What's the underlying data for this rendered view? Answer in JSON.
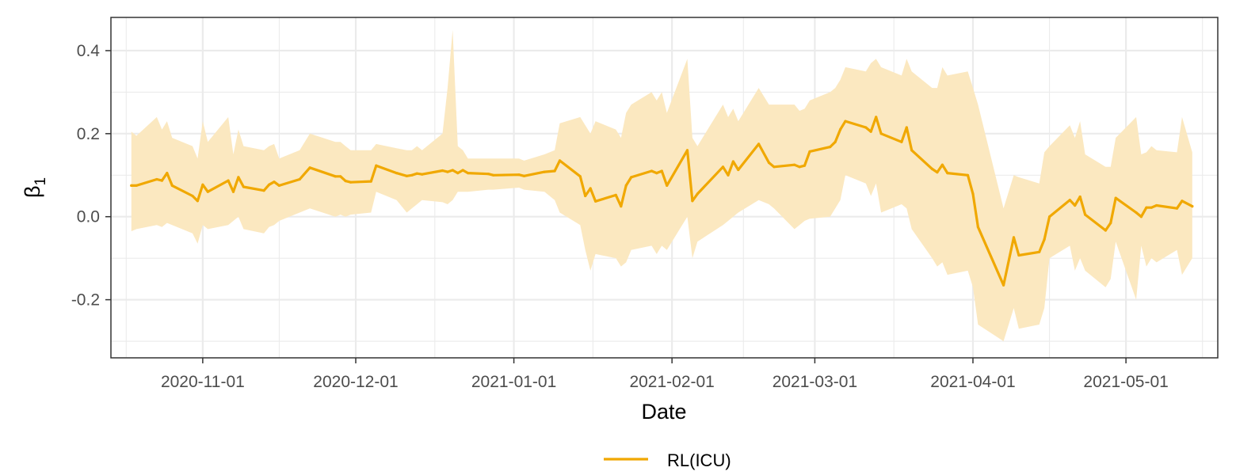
{
  "chart_data": {
    "type": "line",
    "title": "",
    "xlabel": "Date",
    "ylabel": "β",
    "ylabel_subscript": "1",
    "x_ticks": [
      "2020-11-01",
      "2020-12-01",
      "2021-01-01",
      "2021-02-01",
      "2021-03-01",
      "2021-04-01",
      "2021-05-01"
    ],
    "y_ticks": [
      "-0.2",
      "0.0",
      "0.2",
      "0.4"
    ],
    "xlim": [
      "2020-10-14",
      "2021-05-19"
    ],
    "ylim": [
      -0.34,
      0.48
    ],
    "grid": true,
    "legend": {
      "position": "bottom"
    },
    "series": [
      {
        "name": "RL(ICU)",
        "color": "#f0a800",
        "band_color": "#fbe8c0",
        "points": [
          [
            "2020-10-18",
            0.075,
            -0.035,
            0.205
          ],
          [
            "2020-10-19",
            0.075,
            -0.03,
            0.195
          ],
          [
            "2020-10-23",
            0.09,
            -0.02,
            0.24
          ],
          [
            "2020-10-24",
            0.087,
            -0.025,
            0.21
          ],
          [
            "2020-10-25",
            0.105,
            -0.015,
            0.23
          ],
          [
            "2020-10-26",
            0.075,
            -0.02,
            0.19
          ],
          [
            "2020-10-30",
            0.05,
            -0.04,
            0.17
          ],
          [
            "2020-10-31",
            0.038,
            -0.065,
            0.14
          ],
          [
            "2020-11-01",
            0.077,
            -0.02,
            0.23
          ],
          [
            "2020-11-02",
            0.06,
            -0.03,
            0.18
          ],
          [
            "2020-11-06",
            0.087,
            -0.02,
            0.24
          ],
          [
            "2020-11-07",
            0.06,
            -0.01,
            0.15
          ],
          [
            "2020-11-08",
            0.095,
            0.0,
            0.21
          ],
          [
            "2020-11-09",
            0.072,
            -0.03,
            0.17
          ],
          [
            "2020-11-13",
            0.063,
            -0.04,
            0.16
          ],
          [
            "2020-11-14",
            0.077,
            -0.025,
            0.17
          ],
          [
            "2020-11-15",
            0.084,
            -0.02,
            0.175
          ],
          [
            "2020-11-16",
            0.075,
            -0.01,
            0.14
          ],
          [
            "2020-11-20",
            0.09,
            0.01,
            0.16
          ],
          [
            "2020-11-22",
            0.118,
            0.02,
            0.2
          ],
          [
            "2020-11-27",
            0.097,
            0.0,
            0.18
          ],
          [
            "2020-11-28",
            0.097,
            0.005,
            0.18
          ],
          [
            "2020-11-29",
            0.086,
            0.0,
            0.17
          ],
          [
            "2020-11-30",
            0.083,
            0.005,
            0.16
          ],
          [
            "2020-12-04",
            0.085,
            0.01,
            0.16
          ],
          [
            "2020-12-05",
            0.123,
            0.06,
            0.175
          ],
          [
            "2020-12-09",
            0.105,
            0.04,
            0.165
          ],
          [
            "2020-12-11",
            0.098,
            0.01,
            0.16
          ],
          [
            "2020-12-12",
            0.1,
            0.02,
            0.16
          ],
          [
            "2020-12-13",
            0.104,
            0.03,
            0.17
          ],
          [
            "2020-12-14",
            0.102,
            0.04,
            0.16
          ],
          [
            "2020-12-18",
            0.111,
            0.035,
            0.2
          ],
          [
            "2020-12-19",
            0.108,
            0.03,
            0.31
          ],
          [
            "2020-12-20",
            0.112,
            0.04,
            0.45
          ],
          [
            "2020-12-21",
            0.105,
            0.06,
            0.17
          ],
          [
            "2020-12-22",
            0.112,
            0.06,
            0.16
          ],
          [
            "2020-12-23",
            0.105,
            0.06,
            0.14
          ],
          [
            "2020-12-27",
            0.103,
            0.065,
            0.14
          ],
          [
            "2020-12-28",
            0.1,
            0.065,
            0.14
          ],
          [
            "2021-01-02",
            0.101,
            0.07,
            0.14
          ],
          [
            "2021-01-03",
            0.098,
            0.065,
            0.135
          ],
          [
            "2021-01-07",
            0.108,
            0.06,
            0.15
          ],
          [
            "2021-01-09",
            0.11,
            0.04,
            0.16
          ],
          [
            "2021-01-10",
            0.135,
            0.01,
            0.225
          ],
          [
            "2021-01-14",
            0.097,
            -0.02,
            0.24
          ],
          [
            "2021-01-15",
            0.05,
            -0.08,
            0.22
          ],
          [
            "2021-01-16",
            0.068,
            -0.13,
            0.2
          ],
          [
            "2021-01-17",
            0.037,
            -0.09,
            0.23
          ],
          [
            "2021-01-21",
            0.052,
            -0.1,
            0.21
          ],
          [
            "2021-01-22",
            0.025,
            -0.12,
            0.19
          ],
          [
            "2021-01-23",
            0.075,
            -0.11,
            0.25
          ],
          [
            "2021-01-24",
            0.095,
            -0.08,
            0.27
          ],
          [
            "2021-01-28",
            0.11,
            -0.07,
            0.3
          ],
          [
            "2021-01-29",
            0.105,
            -0.09,
            0.28
          ],
          [
            "2021-01-30",
            0.11,
            -0.07,
            0.3
          ],
          [
            "2021-01-31",
            0.075,
            -0.08,
            0.25
          ],
          [
            "2021-02-04",
            0.16,
            0.0,
            0.38
          ],
          [
            "2021-02-05",
            0.038,
            -0.1,
            0.19
          ],
          [
            "2021-02-06",
            0.055,
            -0.06,
            0.17
          ],
          [
            "2021-02-11",
            0.12,
            -0.02,
            0.27
          ],
          [
            "2021-02-12",
            0.1,
            -0.01,
            0.24
          ],
          [
            "2021-02-13",
            0.133,
            0.0,
            0.26
          ],
          [
            "2021-02-14",
            0.113,
            0.01,
            0.23
          ],
          [
            "2021-02-18",
            0.175,
            0.04,
            0.31
          ],
          [
            "2021-02-20",
            0.13,
            0.03,
            0.27
          ],
          [
            "2021-02-21",
            0.12,
            0.02,
            0.27
          ],
          [
            "2021-02-25",
            0.125,
            -0.03,
            0.27
          ],
          [
            "2021-02-26",
            0.12,
            -0.02,
            0.255
          ],
          [
            "2021-02-27",
            0.123,
            -0.01,
            0.26
          ],
          [
            "2021-02-28",
            0.157,
            -0.005,
            0.28
          ],
          [
            "2021-03-04",
            0.168,
            0.0,
            0.3
          ],
          [
            "2021-03-05",
            0.18,
            0.02,
            0.31
          ],
          [
            "2021-03-06",
            0.21,
            0.04,
            0.33
          ],
          [
            "2021-03-07",
            0.23,
            0.1,
            0.36
          ],
          [
            "2021-03-11",
            0.215,
            0.08,
            0.35
          ],
          [
            "2021-03-12",
            0.205,
            0.05,
            0.37
          ],
          [
            "2021-03-13",
            0.24,
            0.08,
            0.38
          ],
          [
            "2021-03-14",
            0.2,
            0.01,
            0.36
          ],
          [
            "2021-03-18",
            0.18,
            0.03,
            0.34
          ],
          [
            "2021-03-19",
            0.215,
            0.02,
            0.38
          ],
          [
            "2021-03-20",
            0.16,
            -0.03,
            0.35
          ],
          [
            "2021-03-24",
            0.115,
            -0.1,
            0.31
          ],
          [
            "2021-03-25",
            0.107,
            -0.12,
            0.31
          ],
          [
            "2021-03-26",
            0.125,
            -0.11,
            0.36
          ],
          [
            "2021-03-27",
            0.105,
            -0.14,
            0.34
          ],
          [
            "2021-03-31",
            0.1,
            -0.13,
            0.35
          ],
          [
            "2021-04-01",
            0.055,
            -0.17,
            0.31
          ],
          [
            "2021-04-02",
            -0.025,
            -0.26,
            0.27
          ],
          [
            "2021-04-07",
            -0.165,
            -0.3,
            0.02
          ],
          [
            "2021-04-09",
            -0.05,
            -0.22,
            0.1
          ],
          [
            "2021-04-10",
            -0.093,
            -0.27,
            0.095
          ],
          [
            "2021-04-14",
            -0.085,
            -0.26,
            0.08
          ],
          [
            "2021-04-15",
            -0.055,
            -0.22,
            0.155
          ],
          [
            "2021-04-16",
            0.0,
            -0.1,
            0.17
          ],
          [
            "2021-04-20",
            0.04,
            -0.07,
            0.22
          ],
          [
            "2021-04-21",
            0.027,
            -0.13,
            0.19
          ],
          [
            "2021-04-22",
            0.048,
            -0.1,
            0.23
          ],
          [
            "2021-04-23",
            0.005,
            -0.13,
            0.15
          ],
          [
            "2021-04-27",
            -0.033,
            -0.17,
            0.12
          ],
          [
            "2021-04-28",
            -0.015,
            -0.15,
            0.12
          ],
          [
            "2021-04-29",
            0.045,
            -0.06,
            0.19
          ],
          [
            "2021-05-03",
            0.01,
            -0.2,
            0.24
          ],
          [
            "2021-05-04",
            0.0,
            -0.07,
            0.15
          ],
          [
            "2021-05-05",
            0.022,
            -0.12,
            0.155
          ],
          [
            "2021-05-06",
            0.022,
            -0.1,
            0.17
          ],
          [
            "2021-05-07",
            0.027,
            -0.11,
            0.16
          ],
          [
            "2021-05-11",
            0.02,
            -0.08,
            0.155
          ],
          [
            "2021-05-12",
            0.038,
            -0.14,
            0.24
          ],
          [
            "2021-05-14",
            0.025,
            -0.1,
            0.155
          ]
        ]
      }
    ]
  }
}
